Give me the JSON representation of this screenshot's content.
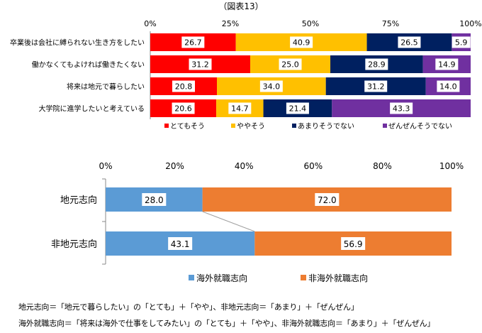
{
  "figure_label": "（図表13）",
  "chart_data": [
    {
      "type": "bar",
      "orientation": "horizontal",
      "stacked": "percent",
      "xlim": [
        0,
        100
      ],
      "x_ticks": [
        "0%",
        "25%",
        "50%",
        "75%",
        "100%"
      ],
      "categories": [
        "卒業後は会社に縛られない生き方をしたい",
        "働かなくてもよければ働きたくない",
        "将来は地元で暮らしたい",
        "大学院に進学したいと考えている"
      ],
      "series": [
        {
          "name": "とてもそう",
          "color": "#ff0000",
          "values": [
            26.7,
            31.2,
            20.8,
            20.6
          ]
        },
        {
          "name": "ややそう",
          "color": "#ffc000",
          "values": [
            40.9,
            25.0,
            34.0,
            14.7
          ]
        },
        {
          "name": "あまりそうでない",
          "color": "#002060",
          "values": [
            26.5,
            28.9,
            31.2,
            21.4
          ]
        },
        {
          "name": "ぜんぜんそうでない",
          "color": "#7030a0",
          "values": [
            5.9,
            14.9,
            14.0,
            43.3
          ]
        }
      ],
      "labels": [
        [
          "26.7",
          "40.9",
          "26.5",
          "5.9"
        ],
        [
          "31.2",
          "25.0",
          "28.9",
          "14.9"
        ],
        [
          "20.8",
          "34.0",
          "31.2",
          "14.0"
        ],
        [
          "20.6",
          "14.7",
          "21.4",
          "43.3"
        ]
      ],
      "legend_position": "bottom",
      "grid": false
    },
    {
      "type": "bar",
      "orientation": "horizontal",
      "stacked": "percent",
      "xlim": [
        0,
        100
      ],
      "x_ticks": [
        "0%",
        "20%",
        "40%",
        "60%",
        "80%",
        "100%"
      ],
      "categories": [
        "地元志向",
        "非地元志向"
      ],
      "series": [
        {
          "name": "海外就職志向",
          "color": "#5b9bd5",
          "values": [
            28.0,
            43.1
          ]
        },
        {
          "name": "非海外就職志向",
          "color": "#ed7d31",
          "values": [
            72.0,
            56.9
          ]
        }
      ],
      "labels": [
        [
          "28.0",
          "72.0"
        ],
        [
          "43.1",
          "56.9"
        ]
      ],
      "legend_position": "bottom",
      "grid": false,
      "series_lines": true
    }
  ],
  "notes": [
    "地元志向＝「地元で暮らしたい」の「とても」＋「やや」、非地元志向＝「あまり」＋「ぜんぜん」",
    "海外就職志向＝「将来は海外で仕事をしてみたい」の「とても」＋「やや」、非海外就職志向＝「あまり」＋「ぜんぜん」"
  ]
}
